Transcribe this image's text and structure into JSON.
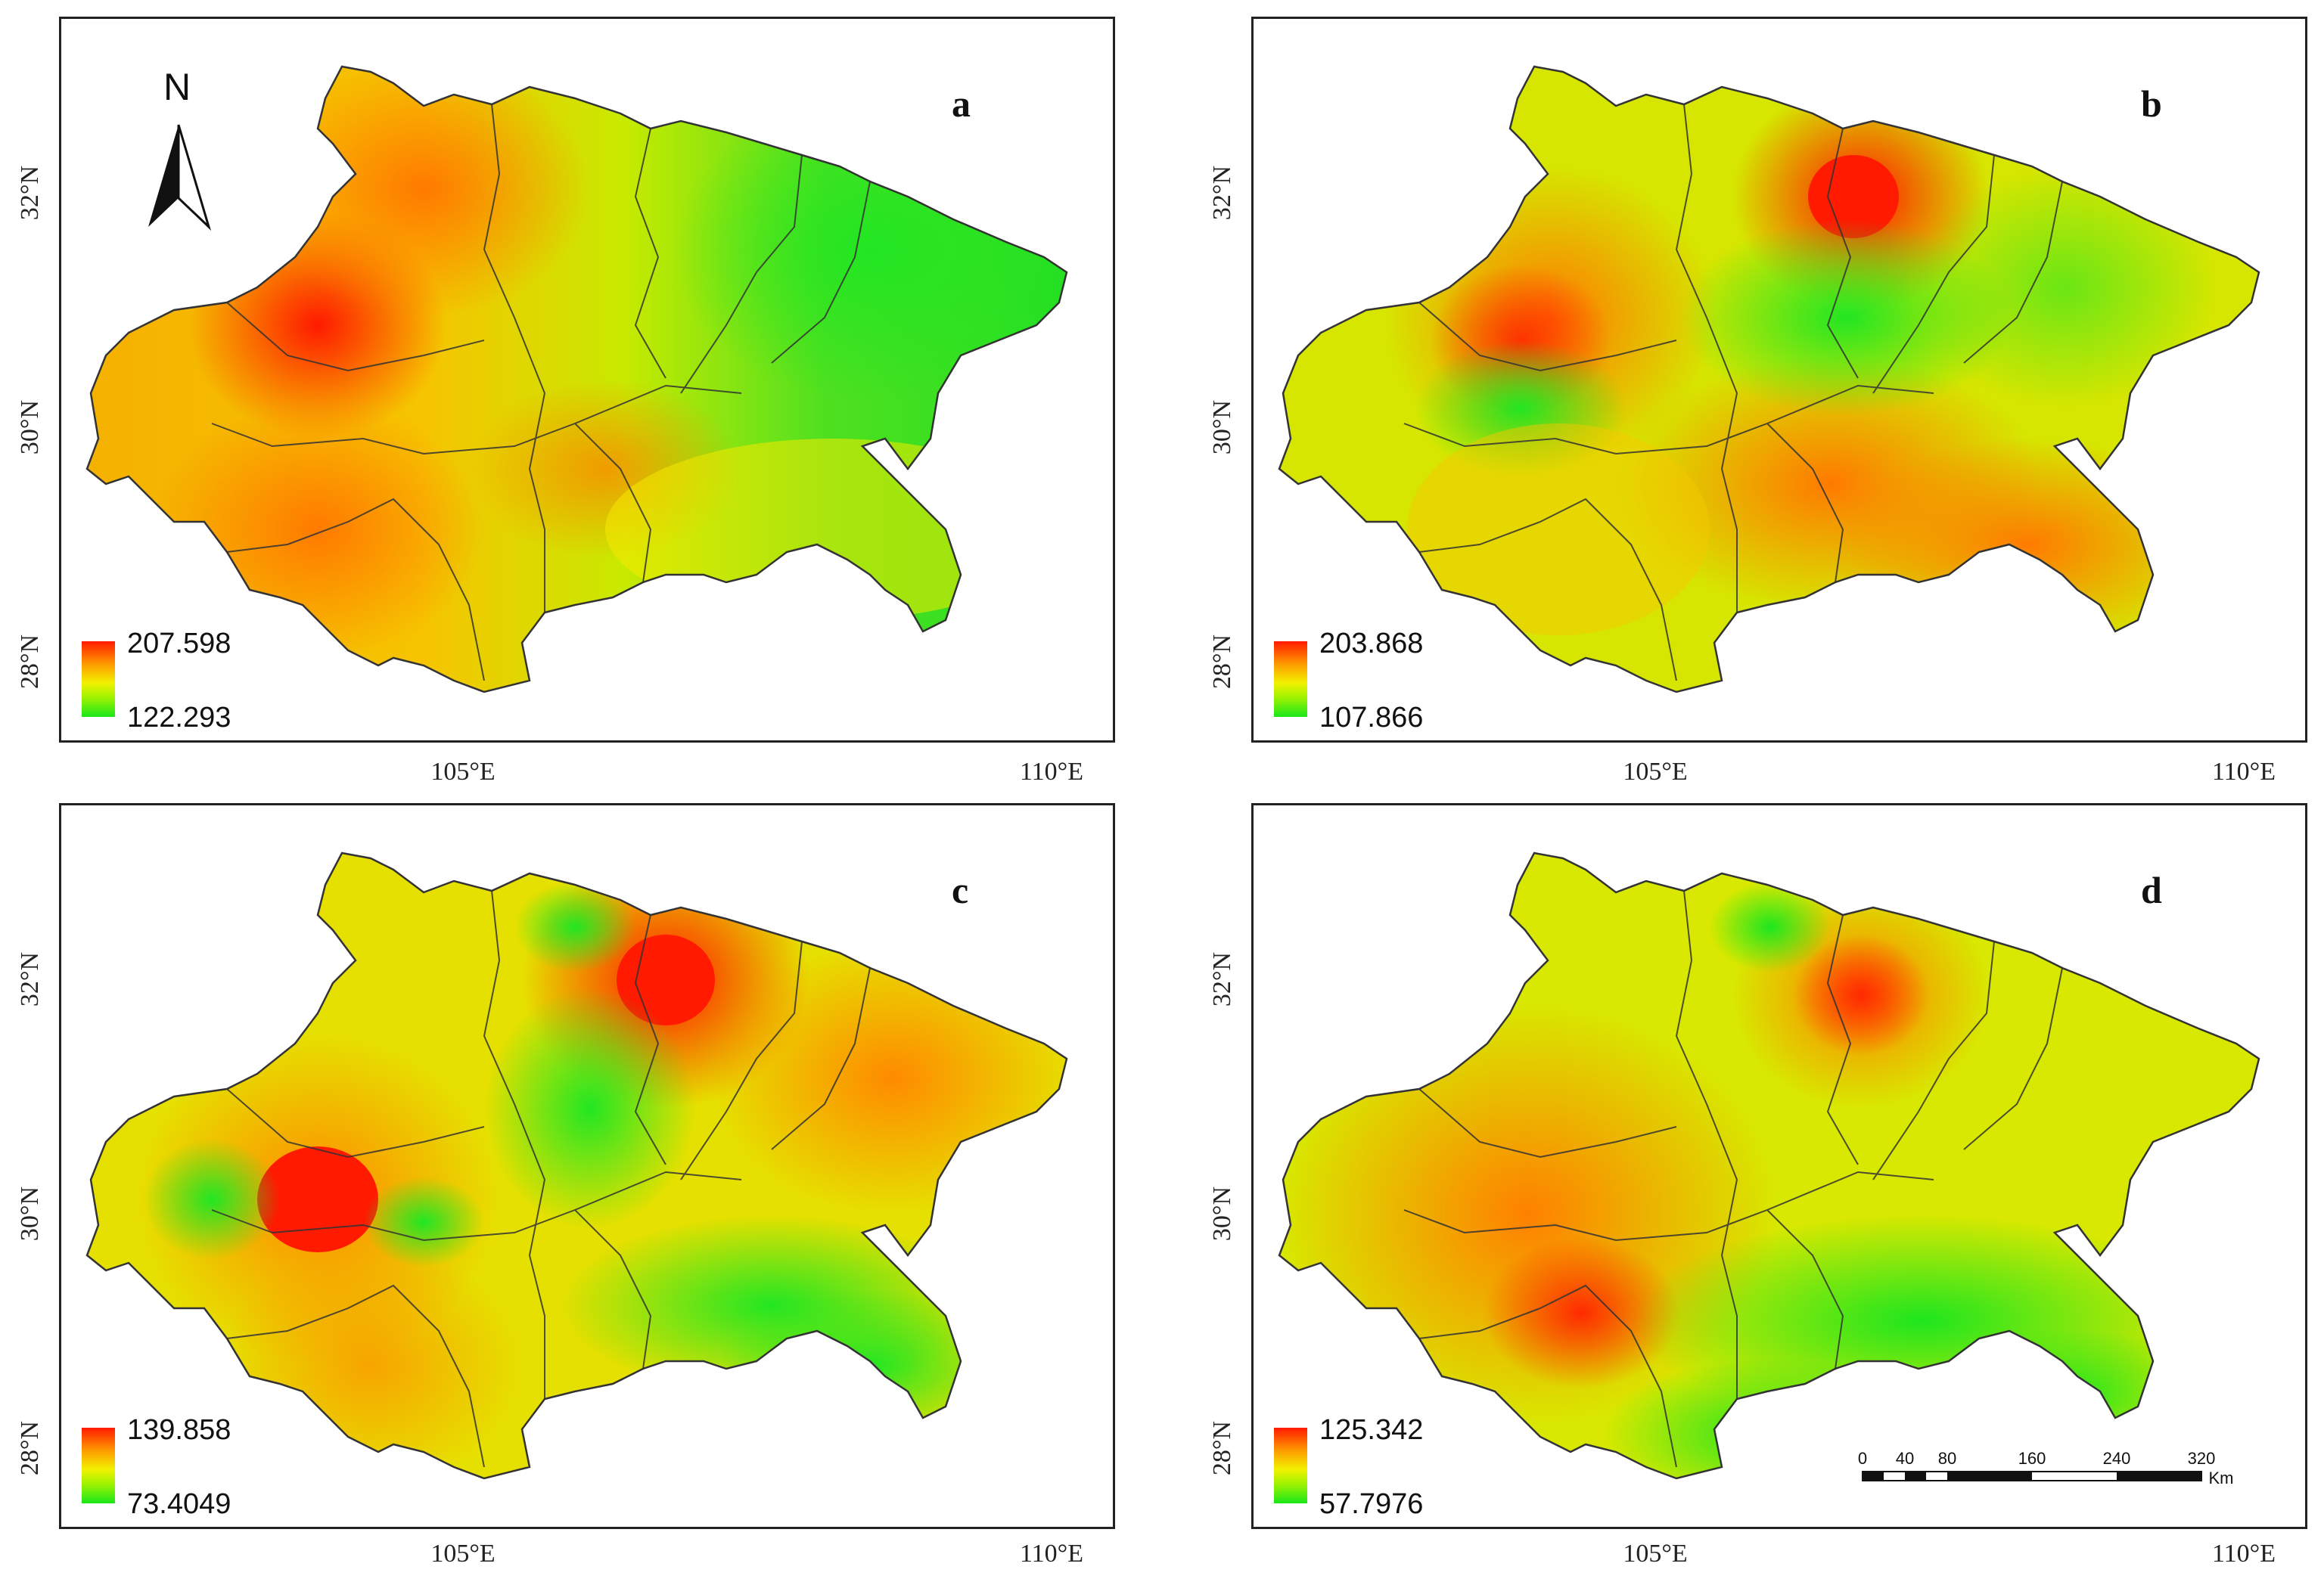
{
  "panels": [
    {
      "letter": "a",
      "legend_max": "207.598",
      "legend_min": "122.293",
      "hot": "#ff2000"
    },
    {
      "letter": "b",
      "legend_max": "203.868",
      "legend_min": "107.866",
      "hot": "#ff2000"
    },
    {
      "letter": "c",
      "legend_max": "139.858",
      "legend_min": "73.4049",
      "hot": "#ff1000"
    },
    {
      "letter": "d",
      "legend_max": "125.342",
      "legend_min": "57.7976",
      "hot": "#ff3000"
    }
  ],
  "axes": {
    "x_ticks": [
      "105°E",
      "110°E"
    ],
    "y_ticks": [
      "32°N",
      "30°N",
      "28°N"
    ]
  },
  "north_arrow": {
    "label": "N"
  },
  "scale_bar": {
    "ticks": [
      "0",
      "40",
      "80",
      "160",
      "240",
      "320"
    ],
    "unit": "Km"
  },
  "colors": {
    "high": "#ff1a00",
    "mid_high": "#ff9a00",
    "mid": "#f2f200",
    "low": "#19e619",
    "border": "#333333"
  }
}
